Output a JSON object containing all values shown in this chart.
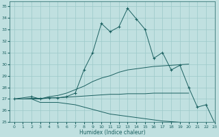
{
  "xlabel": "Humidex (Indice chaleur)",
  "bg_color": "#c0e0e0",
  "grid_color": "#9cc8c8",
  "line_color": "#1a6060",
  "xlim": [
    -0.5,
    23
  ],
  "ylim": [
    25,
    35.4
  ],
  "xticks": [
    0,
    1,
    2,
    3,
    4,
    5,
    6,
    7,
    8,
    9,
    10,
    11,
    12,
    13,
    14,
    15,
    16,
    17,
    18,
    19,
    20,
    21,
    22,
    23
  ],
  "yticks": [
    25,
    26,
    27,
    28,
    29,
    30,
    31,
    32,
    33,
    34,
    35
  ],
  "line_main_x": [
    0,
    2,
    3,
    4,
    5,
    6,
    7,
    8,
    9,
    10,
    11,
    12,
    13,
    14,
    15,
    16,
    17,
    18,
    19,
    20,
    21,
    22,
    23
  ],
  "line_main_y": [
    27.0,
    27.2,
    27.0,
    27.1,
    27.1,
    27.2,
    27.5,
    29.5,
    31.0,
    33.5,
    32.8,
    33.2,
    34.8,
    33.9,
    33.0,
    30.5,
    31.0,
    29.5,
    29.9,
    28.0,
    26.3,
    26.5,
    24.9
  ],
  "line_up_x": [
    0,
    1,
    2,
    3,
    4,
    5,
    6,
    7,
    8,
    9,
    10,
    11,
    12,
    13,
    14,
    15,
    16,
    17,
    18,
    19,
    20,
    21,
    22,
    23
  ],
  "line_up_y": [
    27.0,
    27.0,
    27.0,
    27.0,
    27.2,
    27.3,
    27.5,
    27.8,
    28.1,
    28.5,
    28.8,
    29.0,
    29.3,
    29.5,
    29.6,
    29.7,
    29.8,
    29.85,
    29.9,
    29.95,
    30.0,
    null,
    null,
    null
  ],
  "line_flat_x": [
    0,
    1,
    2,
    3,
    4,
    5,
    6,
    7,
    8,
    9,
    10,
    11,
    12,
    13,
    14,
    15,
    16,
    17,
    18,
    19,
    20
  ],
  "line_flat_y": [
    27.0,
    27.0,
    27.05,
    27.05,
    27.1,
    27.1,
    27.15,
    27.2,
    27.25,
    27.3,
    27.35,
    27.4,
    27.4,
    27.45,
    27.45,
    27.45,
    27.5,
    27.5,
    27.5,
    27.5,
    27.5
  ],
  "line_down_x": [
    0,
    1,
    2,
    3,
    4,
    5,
    6,
    7,
    8,
    9,
    10,
    11,
    12,
    13,
    14,
    15,
    16,
    17,
    18,
    19,
    20,
    21,
    22,
    23
  ],
  "line_down_y": [
    27.0,
    27.0,
    27.0,
    26.7,
    26.7,
    26.7,
    26.6,
    26.5,
    26.3,
    26.1,
    25.9,
    25.7,
    25.6,
    25.5,
    25.4,
    25.3,
    25.2,
    25.1,
    25.05,
    25.0,
    24.95,
    null,
    null,
    null
  ]
}
